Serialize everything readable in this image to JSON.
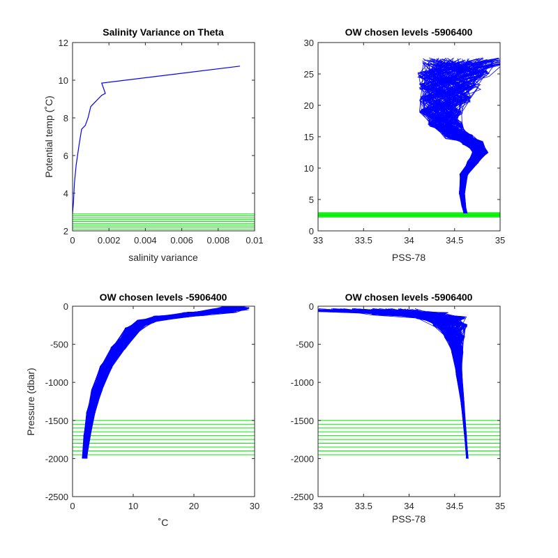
{
  "chart_data": [
    {
      "type": "line",
      "title": "Salinity Variance on Theta",
      "xlabel": "salinity variance",
      "ylabel": "Potential temp (˚C)",
      "xlim": [
        0,
        0.01
      ],
      "ylim": [
        2,
        12
      ],
      "xticks": [
        "0",
        "0.002",
        "0.004",
        "0.006",
        "0.008",
        "0.01"
      ],
      "yticks": [
        "2",
        "4",
        "6",
        "8",
        "10",
        "12"
      ],
      "series": [
        {
          "color": "#0000ff",
          "x": [
            0.0,
            5e-05,
            0.0001,
            0.0002,
            0.00035,
            0.0005,
            0.0007,
            0.00085,
            0.001,
            0.0012,
            0.0016,
            0.0018,
            0.0016,
            0.0092
          ],
          "y": [
            2.9,
            3.5,
            4.5,
            5.5,
            6.5,
            7.4,
            7.6,
            8.0,
            8.6,
            8.8,
            9.2,
            9.3,
            9.85,
            10.75
          ]
        }
      ],
      "hlines": {
        "color": "#00ee00",
        "values": [
          2.0,
          2.1,
          2.2,
          2.3,
          2.4,
          2.5,
          2.6,
          2.7,
          2.8,
          2.9
        ]
      }
    },
    {
      "type": "line",
      "title": "OW chosen levels -5906400",
      "xlabel": "PSS-78",
      "ylabel": "",
      "xlim": [
        33,
        35
      ],
      "ylim": [
        0,
        30
      ],
      "xticks": [
        "33",
        "33.5",
        "34",
        "34.5",
        "35"
      ],
      "yticks": [
        "0",
        "5",
        "10",
        "15",
        "20",
        "25",
        "30"
      ],
      "profile_count": 160,
      "series": [
        {
          "name": "",
          "color": "#0000ff",
          "x": [
            34.62,
            34.6,
            34.58,
            34.6,
            34.7,
            34.78,
            34.7,
            34.55,
            34.4,
            34.35,
            34.4,
            34.45,
            34.5,
            34.6
          ],
          "y": [
            2.8,
            4.0,
            6.0,
            9.0,
            11.0,
            12.5,
            14.0,
            15.0,
            17.0,
            19.0,
            21.0,
            23.0,
            25.0,
            27.0
          ]
        }
      ],
      "hlines": {
        "color": "#00ee00",
        "values": [
          2.2,
          2.3,
          2.4,
          2.5,
          2.6,
          2.7,
          2.8,
          2.9
        ]
      }
    },
    {
      "type": "line",
      "title": "OW chosen levels -5906400",
      "xlabel": "˚C",
      "ylabel": "Pressure (dbar)",
      "xlim": [
        0,
        30
      ],
      "ylim": [
        -2500,
        0
      ],
      "xticks": [
        "0",
        "10",
        "20",
        "30"
      ],
      "yticks": [
        "-2500",
        "-2000",
        "-1500",
        "-1000",
        "-500",
        "0"
      ],
      "profile_count": 160,
      "series": [
        {
          "name": "",
          "color": "#0000ff",
          "x": [
            2.0,
            2.4,
            3.0,
            4.0,
            5.5,
            7.5,
            10.0,
            12.0,
            15.0,
            20.0,
            25.0,
            27.0
          ],
          "y": [
            -2000,
            -1700,
            -1400,
            -1100,
            -800,
            -550,
            -300,
            -200,
            -150,
            -100,
            -60,
            -20
          ]
        }
      ],
      "hlines": {
        "color": "#00ee00",
        "values": [
          -1500,
          -1550,
          -1600,
          -1650,
          -1700,
          -1750,
          -1800,
          -1850,
          -1900,
          -1950
        ]
      }
    },
    {
      "type": "line",
      "title": "OW chosen levels -5906400",
      "xlabel": "PSS-78",
      "ylabel": "",
      "xlim": [
        33,
        35
      ],
      "ylim": [
        -2500,
        0
      ],
      "xticks": [
        "33",
        "33.5",
        "34",
        "34.5",
        "35"
      ],
      "yticks": [
        "-2500",
        "-2000",
        "-1500",
        "-1000",
        "-500",
        "0"
      ],
      "profile_count": 160,
      "series": [
        {
          "name": "",
          "color": "#0000ff",
          "x": [
            34.64,
            34.62,
            34.59,
            34.55,
            34.53,
            34.5,
            34.45,
            34.35,
            34.0,
            33.5
          ],
          "y": [
            -2000,
            -1700,
            -1300,
            -900,
            -600,
            -400,
            -250,
            -150,
            -100,
            -50
          ]
        }
      ],
      "hlines": {
        "color": "#00ee00",
        "values": [
          -1500,
          -1550,
          -1600,
          -1650,
          -1700,
          -1750,
          -1800,
          -1850,
          -1900,
          -1950
        ]
      }
    }
  ]
}
